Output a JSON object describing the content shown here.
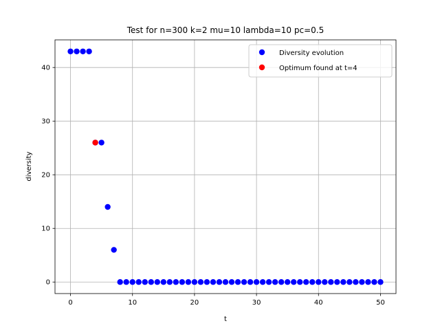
{
  "chart_data": {
    "type": "scatter",
    "title": "Test for n=300 k=2 mu=10 lambda=10 pc=0.5",
    "xlabel": "t",
    "ylabel": "diversity",
    "xlim": [
      -2.5,
      52.5
    ],
    "ylim": [
      -2.15,
      45.15
    ],
    "xticks": [
      0,
      10,
      20,
      30,
      40,
      50
    ],
    "yticks": [
      0,
      10,
      20,
      30,
      40
    ],
    "grid": true,
    "legend_position": "top-right",
    "series": [
      {
        "name": "Diversity evolution",
        "color": "#0000ff",
        "points": [
          [
            0,
            43
          ],
          [
            1,
            43
          ],
          [
            2,
            43
          ],
          [
            3,
            43
          ],
          [
            4,
            26
          ],
          [
            5,
            26
          ],
          [
            6,
            14
          ],
          [
            7,
            6
          ],
          [
            8,
            0
          ],
          [
            9,
            0
          ],
          [
            10,
            0
          ],
          [
            11,
            0
          ],
          [
            12,
            0
          ],
          [
            13,
            0
          ],
          [
            14,
            0
          ],
          [
            15,
            0
          ],
          [
            16,
            0
          ],
          [
            17,
            0
          ],
          [
            18,
            0
          ],
          [
            19,
            0
          ],
          [
            20,
            0
          ],
          [
            21,
            0
          ],
          [
            22,
            0
          ],
          [
            23,
            0
          ],
          [
            24,
            0
          ],
          [
            25,
            0
          ],
          [
            26,
            0
          ],
          [
            27,
            0
          ],
          [
            28,
            0
          ],
          [
            29,
            0
          ],
          [
            30,
            0
          ],
          [
            31,
            0
          ],
          [
            32,
            0
          ],
          [
            33,
            0
          ],
          [
            34,
            0
          ],
          [
            35,
            0
          ],
          [
            36,
            0
          ],
          [
            37,
            0
          ],
          [
            38,
            0
          ],
          [
            39,
            0
          ],
          [
            40,
            0
          ],
          [
            41,
            0
          ],
          [
            42,
            0
          ],
          [
            43,
            0
          ],
          [
            44,
            0
          ],
          [
            45,
            0
          ],
          [
            46,
            0
          ],
          [
            47,
            0
          ],
          [
            48,
            0
          ],
          [
            49,
            0
          ],
          [
            50,
            0
          ]
        ]
      },
      {
        "name": "Optimum found at t=4",
        "color": "#ff0000",
        "points": [
          [
            4,
            26
          ]
        ]
      }
    ]
  }
}
